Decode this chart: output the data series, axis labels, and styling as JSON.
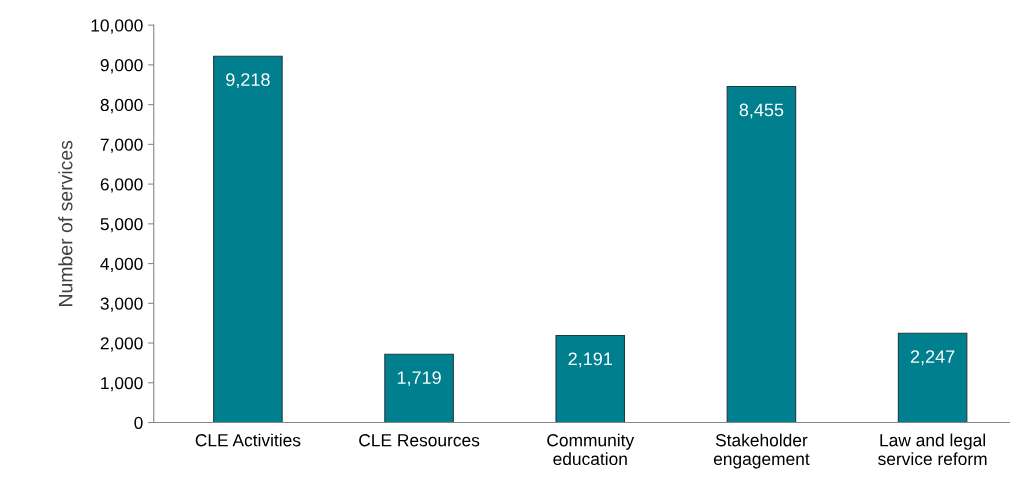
{
  "chart_data": {
    "type": "bar",
    "ylabel": "Number of services",
    "categories": [
      "CLE Activities",
      "CLE Resources",
      "Community\neducation",
      "Stakeholder\nengagement",
      "Law and legal\nservice reform"
    ],
    "values": [
      9218,
      1719,
      2191,
      8455,
      2247
    ],
    "color": "#00808f",
    "ylim": [
      0,
      10000
    ],
    "yticks": [
      {
        "value": 0,
        "label": "0"
      },
      {
        "value": 1000,
        "label": "1,000"
      },
      {
        "value": 2000,
        "label": "2,000"
      },
      {
        "value": 3000,
        "label": "3,000"
      },
      {
        "value": 4000,
        "label": "4,000"
      },
      {
        "value": 5000,
        "label": "5,000"
      },
      {
        "value": 6000,
        "label": "6,000"
      },
      {
        "value": 7000,
        "label": "7,000"
      },
      {
        "value": 8000,
        "label": "8,000"
      },
      {
        "value": 9000,
        "label": "9,000"
      },
      {
        "value": 10000,
        "label": "10,000"
      }
    ],
    "value_labels": [
      "9,218",
      "1,719",
      "2,191",
      "8,455",
      "2,247"
    ],
    "grid": false,
    "legend": false
  }
}
